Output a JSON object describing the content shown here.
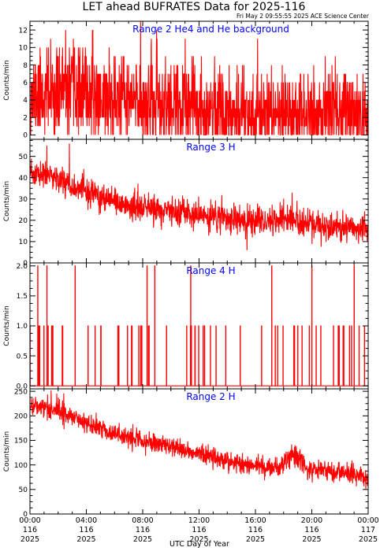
{
  "header": {
    "title": "LET ahead BUFRATES Data for 2025-116",
    "timestamp": "Fri May  2 09:55:55 2025 ACE Science Center"
  },
  "colors": {
    "data": "#ff0000",
    "panel_label": "#0000ff",
    "axes": "#000000",
    "background": "#ffffff"
  },
  "x_axis": {
    "label": "UTC Day of Year",
    "ticks": [
      {
        "time": "00:00",
        "day": "116",
        "year": "2025",
        "hour": 0
      },
      {
        "time": "04:00",
        "day": "116",
        "year": "2025",
        "hour": 4
      },
      {
        "time": "08:00",
        "day": "116",
        "year": "2025",
        "hour": 8
      },
      {
        "time": "12:00",
        "day": "116",
        "year": "2025",
        "hour": 12
      },
      {
        "time": "16:00",
        "day": "116",
        "year": "2025",
        "hour": 16
      },
      {
        "time": "20:00",
        "day": "116",
        "year": "2025",
        "hour": 20
      },
      {
        "time": "00:00",
        "day": "117",
        "year": "2025",
        "hour": 24
      }
    ],
    "range_hours": [
      0,
      24
    ]
  },
  "chart_data": [
    {
      "type": "line",
      "title": "Range 2 He4 and He background",
      "ylabel": "Counts/min",
      "ylim": [
        -0.5,
        13
      ],
      "yticks": [
        0,
        2,
        4,
        6,
        8,
        10,
        12
      ],
      "yticklabels": [
        "0",
        "2",
        "4",
        "6",
        "8",
        "10",
        "12"
      ],
      "series": [
        {
          "x_range_hours": [
            0,
            24
          ],
          "samples_per_hour": 60,
          "baseline": [
            [
              0,
              4.5
            ],
            [
              3,
              5
            ],
            [
              6,
              4
            ],
            [
              12,
              3
            ],
            [
              18,
              2.5
            ],
            [
              24,
              2.5
            ]
          ],
          "noise": 2.5,
          "quantized": true,
          "floor": 0,
          "ceiling": 13,
          "seed": 11,
          "spikes": [
            [
              7.85,
              13
            ],
            [
              2.1,
              10
            ],
            [
              11.5,
              9
            ],
            [
              14.7,
              8
            ],
            [
              17.9,
              8
            ]
          ]
        }
      ]
    },
    {
      "type": "line",
      "title": "Range 3 H",
      "ylabel": "Counts/min",
      "ylim": [
        0,
        58
      ],
      "yticks": [
        0,
        10,
        20,
        30,
        40,
        50
      ],
      "yticklabels": [
        "0",
        "10",
        "20",
        "30",
        "40",
        "50"
      ],
      "series": [
        {
          "x_range_hours": [
            0,
            24
          ],
          "samples_per_hour": 60,
          "baseline": [
            [
              0,
              42
            ],
            [
              2,
              40
            ],
            [
              4,
              33
            ],
            [
              6,
              28
            ],
            [
              8,
              26
            ],
            [
              10,
              24
            ],
            [
              12,
              22
            ],
            [
              14,
              21
            ],
            [
              16,
              19
            ],
            [
              18,
              21
            ],
            [
              20,
              18
            ],
            [
              22,
              16
            ],
            [
              24,
              16
            ]
          ],
          "noise": 3.2,
          "quantized": false,
          "floor": 4,
          "ceiling": 57,
          "seed": 23,
          "spikes": [
            [
              2.8,
              56
            ],
            [
              1.2,
              55
            ],
            [
              18.6,
              33
            ],
            [
              15.4,
              6
            ]
          ]
        }
      ]
    },
    {
      "type": "line",
      "title": "Range 4 H",
      "ylabel": "Counts/min",
      "ylim": [
        -0.05,
        2.05
      ],
      "yticks": [
        0.0,
        0.5,
        1.0,
        1.5,
        2.0
      ],
      "yticklabels": [
        "0.0",
        "0.5",
        "1.0",
        "1.5",
        "2.0"
      ],
      "series": [
        {
          "x_range_hours": [
            0,
            24
          ],
          "samples_per_hour": 60,
          "binary": true,
          "pulse_prob": 0.045,
          "seed": 7,
          "spikes": [
            [
              0.55,
              2
            ],
            [
              1.2,
              2
            ],
            [
              3.2,
              2
            ],
            [
              8.3,
              2
            ],
            [
              8.85,
              2
            ],
            [
              11.4,
              2
            ],
            [
              17.15,
              2
            ],
            [
              20.0,
              2
            ],
            [
              23.0,
              2
            ]
          ]
        }
      ]
    },
    {
      "type": "line",
      "title": "Range 2 H",
      "ylabel": "Counts/min",
      "ylim": [
        0,
        255
      ],
      "yticks": [
        0,
        50,
        100,
        150,
        200,
        250
      ],
      "yticklabels": [
        "0",
        "50",
        "100",
        "150",
        "200",
        "250"
      ],
      "series": [
        {
          "x_range_hours": [
            0,
            24
          ],
          "samples_per_hour": 60,
          "baseline": [
            [
              0,
              222
            ],
            [
              2,
              212
            ],
            [
              4,
              185
            ],
            [
              6,
              165
            ],
            [
              8,
              148
            ],
            [
              10,
              138
            ],
            [
              12,
              123
            ],
            [
              14,
              110
            ],
            [
              16,
              97
            ],
            [
              17.8,
              96
            ],
            [
              18.8,
              125
            ],
            [
              19.6,
              92
            ],
            [
              21,
              88
            ],
            [
              23,
              80
            ],
            [
              24,
              72
            ]
          ],
          "noise": 10,
          "quantized": false,
          "floor": 50,
          "ceiling": 254,
          "seed": 41,
          "spikes": [
            [
              1.5,
              252
            ],
            [
              2.4,
              246
            ],
            [
              18.9,
              138
            ]
          ]
        }
      ]
    }
  ]
}
